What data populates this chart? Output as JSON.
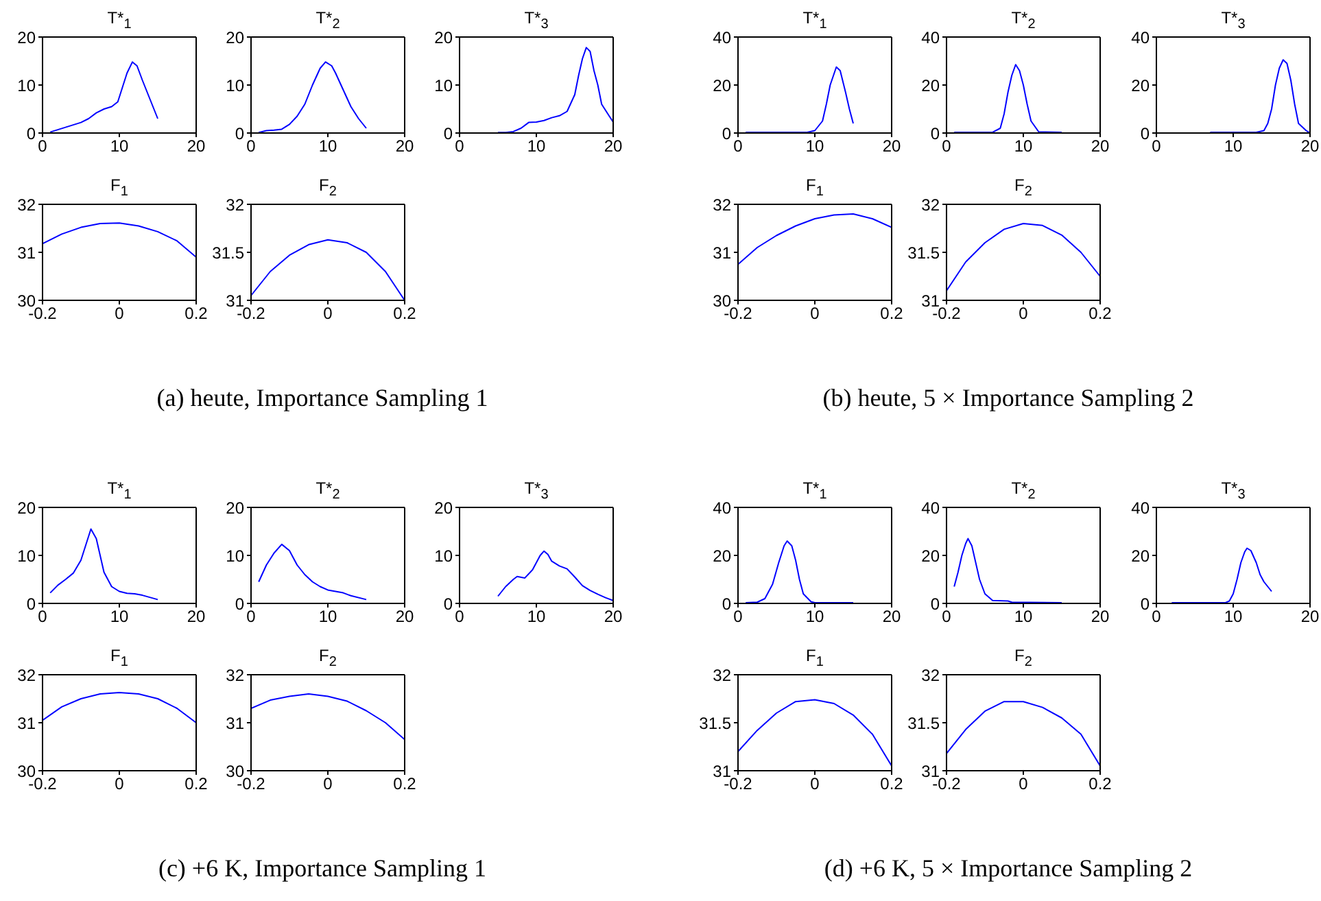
{
  "chart_data": [
    {
      "type": "line",
      "title": "T*$_{1}$",
      "annotations": [
        "(a) heute, Importance Sampling 1"
      ],
      "x": [
        1,
        3,
        5,
        6,
        7,
        8,
        9,
        9.8,
        10.5,
        11,
        11.7,
        12.3,
        13,
        14,
        15
      ],
      "values": [
        0.2,
        1.2,
        2.2,
        3,
        4.2,
        5,
        5.5,
        6.5,
        10,
        12.5,
        14.8,
        14,
        11,
        7,
        3
      ],
      "color": "#0000ff",
      "xlim": [
        0,
        20
      ],
      "xticks": [
        0,
        10,
        20
      ],
      "ylim": [
        0,
        20
      ],
      "yticks": [
        0,
        10,
        20
      ]
    },
    {
      "type": "line",
      "title": "T*$_{2}$",
      "x": [
        1,
        2,
        3,
        4,
        5,
        6,
        7,
        8,
        9,
        9.7,
        10.5,
        11,
        12,
        13,
        14,
        15
      ],
      "values": [
        0.1,
        0.5,
        0.6,
        0.8,
        1.8,
        3.5,
        6,
        10,
        13.5,
        14.8,
        14,
        12.5,
        9,
        5.5,
        3,
        1
      ],
      "color": "#0000ff",
      "xlim": [
        0,
        20
      ],
      "xticks": [
        0,
        10,
        20
      ],
      "ylim": [
        0,
        20
      ],
      "yticks": [
        0,
        10,
        20
      ]
    },
    {
      "type": "line",
      "title": "T*$_{3}$",
      "x": [
        5,
        6,
        7,
        8,
        9,
        10,
        11,
        12,
        13,
        14,
        15,
        15.5,
        16,
        16.5,
        17,
        17.5,
        18,
        18.5,
        19.5,
        20
      ],
      "values": [
        0.1,
        0.1,
        0.3,
        1,
        2.2,
        2.3,
        2.6,
        3.2,
        3.6,
        4.5,
        8,
        12,
        15.5,
        17.8,
        17,
        13,
        10,
        6,
        3.5,
        2.3
      ],
      "color": "#0000ff",
      "xlim": [
        0,
        20
      ],
      "xticks": [
        0,
        10,
        20
      ],
      "ylim": [
        0,
        20
      ],
      "yticks": [
        0,
        10,
        20
      ]
    },
    {
      "type": "line",
      "title": "F$_{1}$",
      "x": [
        -0.2,
        -0.15,
        -0.1,
        -0.05,
        0,
        0.05,
        0.1,
        0.15,
        0.2
      ],
      "values": [
        31.18,
        31.38,
        31.52,
        31.6,
        31.61,
        31.55,
        31.43,
        31.24,
        30.9
      ],
      "color": "#0000ff",
      "xlim": [
        -0.2,
        0.2
      ],
      "xticks": [
        -0.2,
        0,
        0.2
      ],
      "ylim": [
        30,
        32
      ],
      "yticks": [
        30,
        31,
        32
      ]
    },
    {
      "type": "line",
      "title": "F$_{2}$",
      "x": [
        -0.2,
        -0.15,
        -0.1,
        -0.05,
        0,
        0.05,
        0.1,
        0.15,
        0.2
      ],
      "values": [
        31.05,
        31.3,
        31.47,
        31.58,
        31.63,
        31.6,
        31.5,
        31.3,
        31.0
      ],
      "color": "#0000ff",
      "xlim": [
        -0.2,
        0.2
      ],
      "xticks": [
        -0.2,
        0,
        0.2
      ],
      "ylim": [
        31,
        32
      ],
      "yticks": [
        31,
        31.5,
        32
      ]
    },
    {
      "type": "line",
      "title": "T*$_{1}$",
      "annotations": [
        "(b) heute, 5 × Importance Sampling 2"
      ],
      "x": [
        1,
        9,
        10,
        11,
        11.5,
        12,
        12.8,
        13.3,
        14,
        14.5,
        15
      ],
      "values": [
        0.3,
        0.3,
        1,
        5,
        12,
        20,
        27.5,
        26,
        17,
        10,
        4
      ],
      "color": "#0000ff",
      "xlim": [
        0,
        20
      ],
      "xticks": [
        0,
        10,
        20
      ],
      "ylim": [
        0,
        40
      ],
      "yticks": [
        0,
        20,
        40
      ]
    },
    {
      "type": "line",
      "title": "T*$_{2}$",
      "x": [
        1,
        6,
        7,
        7.5,
        8,
        8.5,
        9,
        9.5,
        10,
        10.5,
        11,
        12,
        15
      ],
      "values": [
        0.3,
        0.3,
        2,
        8,
        17,
        24,
        28.5,
        26,
        20,
        12,
        5,
        0.5,
        0.3
      ],
      "color": "#0000ff",
      "xlim": [
        0,
        20
      ],
      "xticks": [
        0,
        10,
        20
      ],
      "ylim": [
        0,
        40
      ],
      "yticks": [
        0,
        20,
        40
      ]
    },
    {
      "type": "line",
      "title": "T*$_{3}$",
      "x": [
        7,
        13,
        14,
        14.5,
        15,
        15.5,
        16,
        16.5,
        17,
        17.5,
        18,
        18.5,
        19.5,
        20
      ],
      "values": [
        0.3,
        0.3,
        1,
        4,
        10,
        20,
        27,
        30.5,
        29,
        22,
        12,
        4,
        1,
        0
      ],
      "color": "#0000ff",
      "xlim": [
        0,
        20
      ],
      "xticks": [
        0,
        10,
        20
      ],
      "ylim": [
        0,
        40
      ],
      "yticks": [
        0,
        20,
        40
      ]
    },
    {
      "type": "line",
      "title": "F$_{1}$",
      "x": [
        -0.2,
        -0.15,
        -0.1,
        -0.05,
        0,
        0.05,
        0.1,
        0.15,
        0.2
      ],
      "values": [
        30.75,
        31.1,
        31.35,
        31.55,
        31.7,
        31.78,
        31.8,
        31.7,
        31.52
      ],
      "color": "#0000ff",
      "xlim": [
        -0.2,
        0.2
      ],
      "xticks": [
        -0.2,
        0,
        0.2
      ],
      "ylim": [
        30,
        32
      ],
      "yticks": [
        30,
        31,
        32
      ]
    },
    {
      "type": "line",
      "title": "F$_{2}$",
      "x": [
        -0.2,
        -0.15,
        -0.1,
        -0.05,
        0,
        0.05,
        0.1,
        0.15,
        0.2
      ],
      "values": [
        31.1,
        31.4,
        31.6,
        31.74,
        31.8,
        31.78,
        31.68,
        31.5,
        31.25
      ],
      "color": "#0000ff",
      "xlim": [
        -0.2,
        0.2
      ],
      "xticks": [
        -0.2,
        0,
        0.2
      ],
      "ylim": [
        31,
        32
      ],
      "yticks": [
        31,
        31.5,
        32
      ]
    },
    {
      "type": "line",
      "title": "T*$_{1}$",
      "annotations": [
        "(c) +6 K, Importance Sampling 1"
      ],
      "x": [
        1,
        2,
        3,
        4,
        5,
        5.7,
        6.3,
        7,
        7.5,
        8,
        9,
        10,
        11,
        12,
        13,
        15
      ],
      "values": [
        2.2,
        3.8,
        5,
        6.3,
        9,
        12.5,
        15.5,
        13.5,
        10,
        6.5,
        3.5,
        2.5,
        2.1,
        2,
        1.7,
        0.8
      ],
      "color": "#0000ff",
      "xlim": [
        0,
        20
      ],
      "xticks": [
        0,
        10,
        20
      ],
      "ylim": [
        0,
        20
      ],
      "yticks": [
        0,
        10,
        20
      ]
    },
    {
      "type": "line",
      "title": "T*$_{2}$",
      "x": [
        1,
        2,
        3,
        4,
        5,
        6,
        7,
        8,
        9,
        10,
        12,
        13,
        15
      ],
      "values": [
        4.5,
        8,
        10.5,
        12.3,
        11,
        8,
        6,
        4.5,
        3.5,
        2.8,
        2.2,
        1.6,
        0.8
      ],
      "color": "#0000ff",
      "xlim": [
        0,
        20
      ],
      "xticks": [
        0,
        10,
        20
      ],
      "ylim": [
        0,
        20
      ],
      "yticks": [
        0,
        10,
        20
      ]
    },
    {
      "type": "line",
      "title": "T*$_{3}$",
      "x": [
        5,
        6,
        7,
        7.5,
        8.5,
        9.5,
        10.5,
        11,
        11.5,
        12,
        13,
        14,
        15,
        16,
        17,
        18,
        19,
        20
      ],
      "values": [
        1.5,
        3.5,
        5,
        5.6,
        5.3,
        7,
        10,
        10.9,
        10.2,
        8.8,
        7.8,
        7.2,
        5.5,
        3.7,
        2.7,
        1.9,
        1.2,
        0.6
      ],
      "color": "#0000ff",
      "xlim": [
        0,
        20
      ],
      "xticks": [
        0,
        10,
        20
      ],
      "ylim": [
        0,
        20
      ],
      "yticks": [
        0,
        10,
        20
      ]
    },
    {
      "type": "line",
      "title": "F$_{1}$",
      "x": [
        -0.2,
        -0.15,
        -0.1,
        -0.05,
        0,
        0.05,
        0.1,
        0.15,
        0.2
      ],
      "values": [
        31.05,
        31.33,
        31.5,
        31.6,
        31.63,
        31.6,
        31.5,
        31.3,
        31.0
      ],
      "color": "#0000ff",
      "xlim": [
        -0.2,
        0.2
      ],
      "xticks": [
        -0.2,
        0,
        0.2
      ],
      "ylim": [
        30,
        32
      ],
      "yticks": [
        30,
        31,
        32
      ]
    },
    {
      "type": "line",
      "title": "F$_{2}$",
      "x": [
        -0.2,
        -0.15,
        -0.1,
        -0.05,
        0,
        0.05,
        0.1,
        0.15,
        0.2
      ],
      "values": [
        31.3,
        31.47,
        31.55,
        31.6,
        31.55,
        31.45,
        31.25,
        31.0,
        30.65
      ],
      "color": "#0000ff",
      "xlim": [
        -0.2,
        0.2
      ],
      "xticks": [
        -0.2,
        0,
        0.2
      ],
      "ylim": [
        30,
        32
      ],
      "yticks": [
        30,
        31,
        32
      ]
    },
    {
      "type": "line",
      "title": "T*$_{1}$",
      "annotations": [
        "(d) +6 K, 5 × Importance Sampling 2"
      ],
      "x": [
        1,
        2.5,
        3.5,
        4.5,
        5.3,
        6,
        6.4,
        7,
        7.5,
        8,
        8.5,
        9.5,
        10,
        15
      ],
      "values": [
        0.3,
        0.5,
        2,
        8,
        17,
        24,
        26,
        24,
        18,
        10,
        4,
        0.7,
        0.3,
        0.3
      ],
      "color": "#0000ff",
      "xlim": [
        0,
        20
      ],
      "xticks": [
        0,
        10,
        20
      ],
      "ylim": [
        0,
        40
      ],
      "yticks": [
        0,
        20,
        40
      ]
    },
    {
      "type": "line",
      "title": "T*$_{2}$",
      "x": [
        1,
        1.5,
        2,
        2.5,
        2.8,
        3.3,
        3.8,
        4.3,
        5,
        6,
        8,
        8.5,
        15
      ],
      "values": [
        7,
        13,
        20,
        25,
        27,
        24,
        17,
        10,
        4,
        1.2,
        1,
        0.5,
        0.3
      ],
      "color": "#0000ff",
      "xlim": [
        0,
        20
      ],
      "xticks": [
        0,
        10,
        20
      ],
      "ylim": [
        0,
        40
      ],
      "yticks": [
        0,
        20,
        40
      ]
    },
    {
      "type": "line",
      "title": "T*$_{3}$",
      "x": [
        2,
        9,
        9.5,
        10,
        10.5,
        11,
        11.5,
        11.8,
        12.3,
        13,
        13.5,
        14,
        15
      ],
      "values": [
        0.3,
        0.3,
        1,
        4,
        10,
        17,
        21.5,
        23,
        22,
        17,
        12,
        9,
        5
      ],
      "color": "#0000ff",
      "xlim": [
        0,
        20
      ],
      "xticks": [
        0,
        10,
        20
      ],
      "ylim": [
        0,
        40
      ],
      "yticks": [
        0,
        20,
        40
      ]
    },
    {
      "type": "line",
      "title": "F$_{1}$",
      "x": [
        -0.2,
        -0.15,
        -0.1,
        -0.05,
        0,
        0.05,
        0.1,
        0.15,
        0.2
      ],
      "values": [
        31.2,
        31.42,
        31.6,
        31.72,
        31.74,
        31.7,
        31.58,
        31.38,
        31.05
      ],
      "color": "#0000ff",
      "xlim": [
        -0.2,
        0.2
      ],
      "xticks": [
        -0.2,
        0,
        0.2
      ],
      "ylim": [
        31,
        32
      ],
      "yticks": [
        31,
        31.5,
        32
      ]
    },
    {
      "type": "line",
      "title": "F$_{2}$",
      "x": [
        -0.2,
        -0.15,
        -0.1,
        -0.05,
        0,
        0.05,
        0.1,
        0.15,
        0.2
      ],
      "values": [
        31.18,
        31.43,
        31.62,
        31.72,
        31.72,
        31.66,
        31.55,
        31.38,
        31.05
      ],
      "color": "#0000ff",
      "xlim": [
        -0.2,
        0.2
      ],
      "xticks": [
        -0.2,
        0,
        0.2
      ],
      "ylim": [
        31,
        32
      ],
      "yticks": [
        31,
        31.5,
        32
      ]
    }
  ]
}
